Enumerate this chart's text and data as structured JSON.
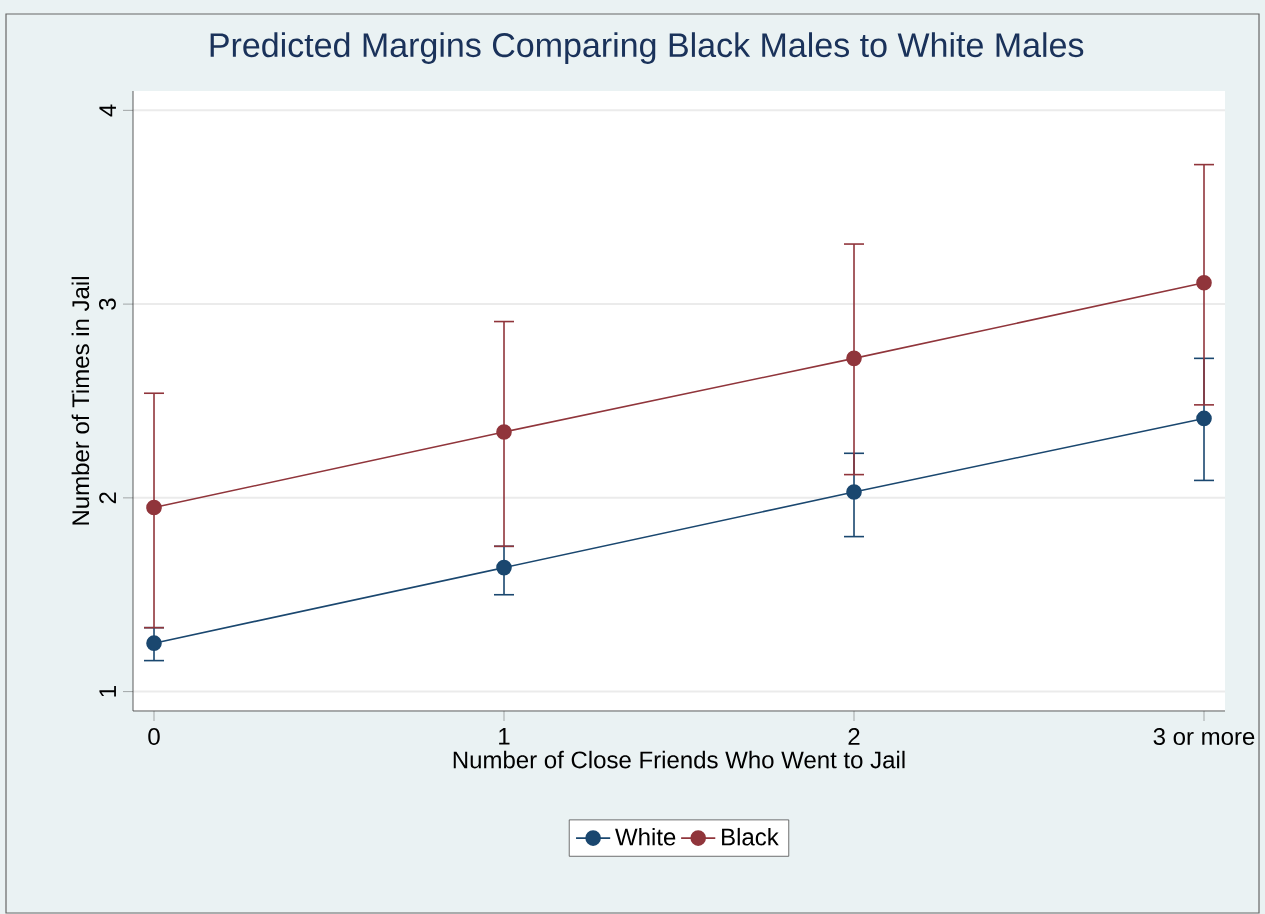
{
  "chart_data": {
    "type": "line",
    "title": "Predicted Margins Comparing Black Males to White Males",
    "xlabel": "Number of Close Friends Who Went to Jail",
    "ylabel": "Number of Times in Jail",
    "categories": [
      "0",
      "1",
      "2",
      "3 or more"
    ],
    "series": [
      {
        "name": "White",
        "color": "#1a476f",
        "values": [
          1.25,
          1.64,
          2.03,
          2.41
        ],
        "errors": [
          [
            1.16,
            1.33
          ],
          [
            1.5,
            1.75
          ],
          [
            1.8,
            2.23
          ],
          [
            2.09,
            2.72
          ]
        ]
      },
      {
        "name": "Black",
        "color": "#90353b",
        "values": [
          1.95,
          2.34,
          2.72,
          3.11
        ],
        "errors": [
          [
            1.33,
            2.54
          ],
          [
            1.75,
            2.91
          ],
          [
            2.12,
            3.31
          ],
          [
            2.48,
            3.72
          ]
        ]
      }
    ],
    "ylim": [
      0.9,
      4.1
    ],
    "yticks": [
      1,
      2,
      3,
      4
    ],
    "grid": "y",
    "legend": "bottom",
    "marker": "circle",
    "line_style": "solid"
  }
}
